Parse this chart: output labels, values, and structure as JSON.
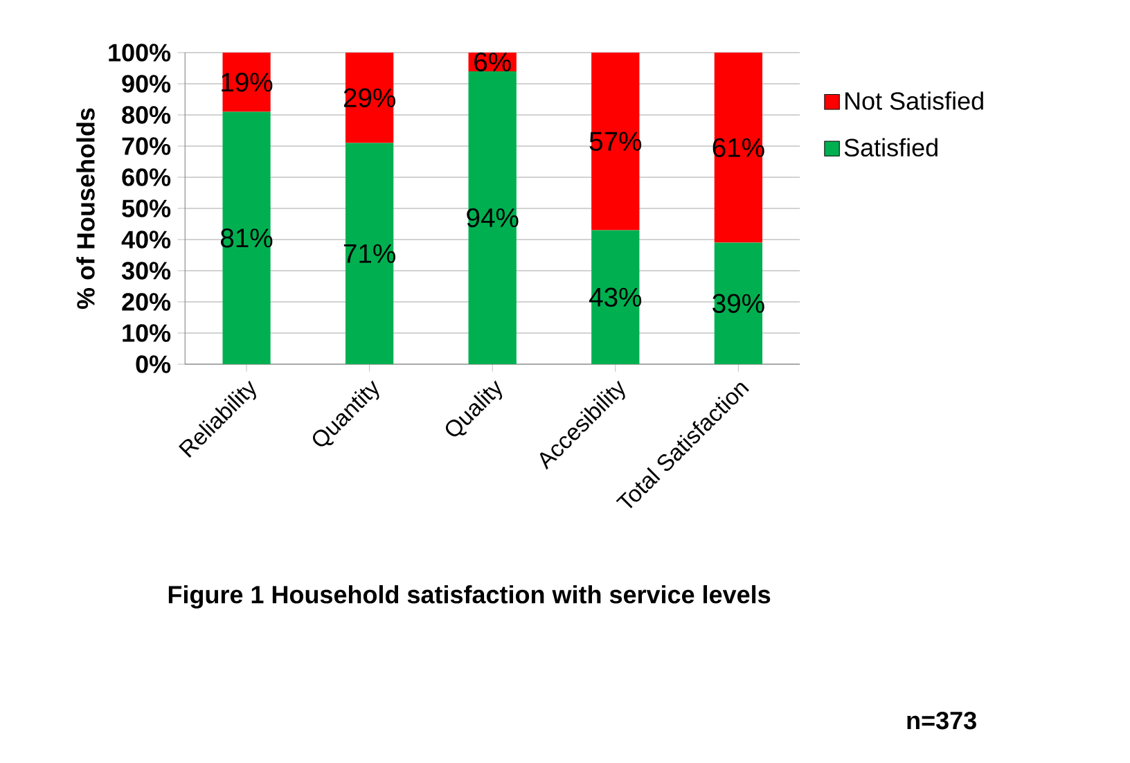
{
  "chart_data": {
    "type": "bar",
    "stacked": true,
    "ylabel": "% of Households",
    "categories": [
      "Reliability",
      "Quantity",
      "Quality",
      "Accesibility",
      "Total Satisfaction"
    ],
    "series": [
      {
        "name": "Satisfied",
        "color": "#00b050",
        "values": [
          81,
          71,
          94,
          43,
          39
        ],
        "value_labels": [
          "81%",
          "71%",
          "94%",
          "43%",
          "39%"
        ]
      },
      {
        "name": "Not Satisfied",
        "color": "#ff0000",
        "values": [
          19,
          29,
          6,
          57,
          61
        ],
        "value_labels": [
          "19%",
          "29%",
          "6%",
          "57%",
          "61%"
        ]
      }
    ],
    "ylim": [
      0,
      100
    ],
    "yticks": [
      {
        "value": 0,
        "label": "0%"
      },
      {
        "value": 10,
        "label": "10%"
      },
      {
        "value": 20,
        "label": "20%"
      },
      {
        "value": 30,
        "label": "30%"
      },
      {
        "value": 40,
        "label": "40%"
      },
      {
        "value": 50,
        "label": "50%"
      },
      {
        "value": 60,
        "label": "60%"
      },
      {
        "value": 70,
        "label": "70%"
      },
      {
        "value": 80,
        "label": "80%"
      },
      {
        "value": 90,
        "label": "90%"
      },
      {
        "value": 100,
        "label": "100%"
      }
    ],
    "grid": "y",
    "legend": "right",
    "annotations": [
      "Figure 1 Household satisfaction with service levels",
      "n=373"
    ]
  }
}
